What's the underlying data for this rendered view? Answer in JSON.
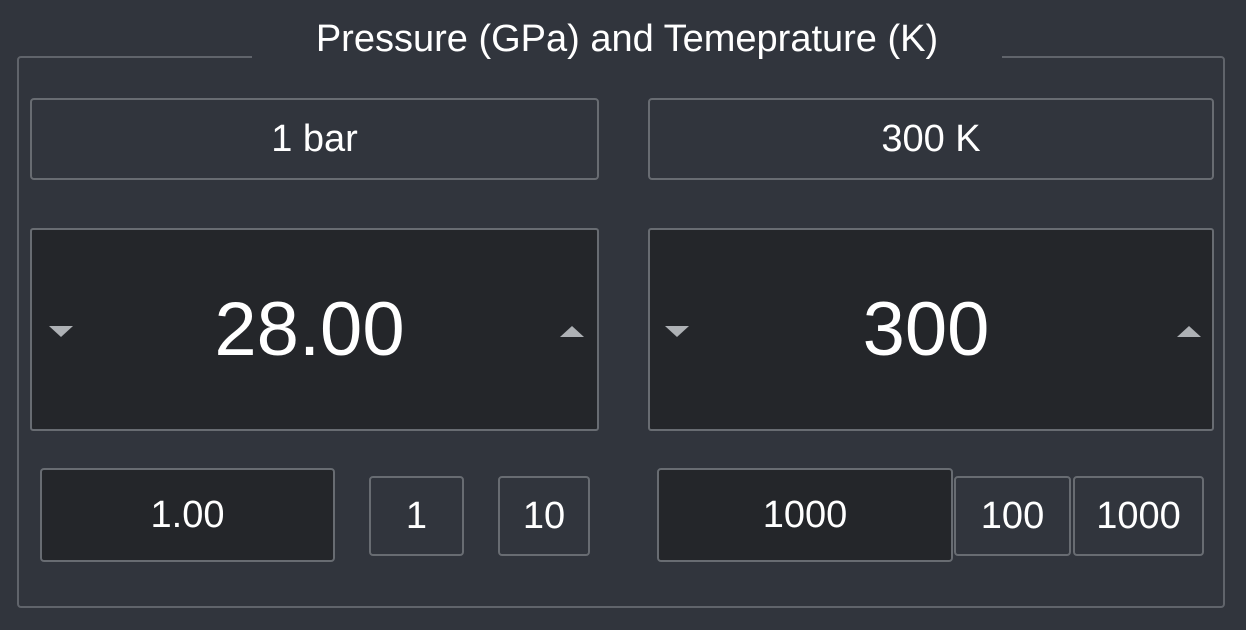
{
  "group": {
    "title": "Pressure (GPa) and Temeprature (K)"
  },
  "pressure": {
    "reset_label": "1 bar",
    "value": "28.00",
    "step_value": "1.00",
    "step_buttons": [
      "1",
      "10"
    ]
  },
  "temperature": {
    "reset_label": "300 K",
    "value": "300",
    "step_value": "1000",
    "step_buttons": [
      "100",
      "1000"
    ]
  },
  "icons": {
    "decrement": "triangle-down-icon",
    "increment": "triangle-up-icon"
  },
  "colors": {
    "background": "#31353d",
    "field_background": "#24262a",
    "border": "#686c72",
    "text": "#ffffff",
    "arrow": "#aeb1b5"
  }
}
